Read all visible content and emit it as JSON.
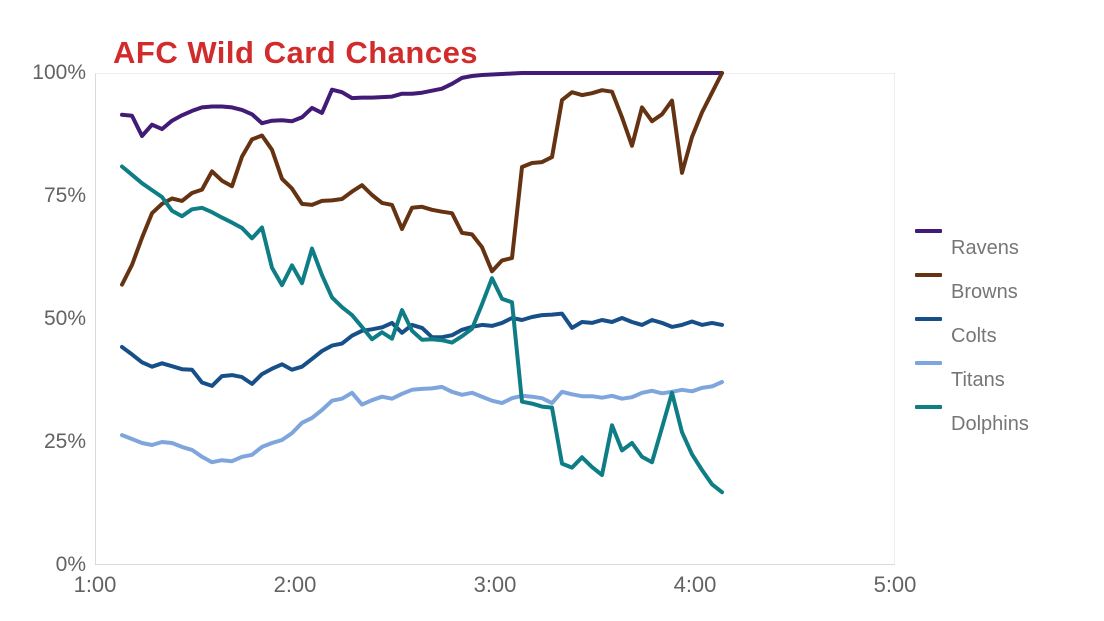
{
  "title": "AFC Wild Card Chances",
  "colors": {
    "title": "#d22b2b",
    "axis_text": "#636363",
    "legend_text": "#767676",
    "plot_border": "#d9d9d9",
    "background": "#ffffff"
  },
  "chart_data": {
    "type": "line",
    "title": "AFC Wild Card Chances",
    "grid": "off",
    "legend_position": "right",
    "x_axis": {
      "label": "",
      "ticks": [
        "1:00",
        "2:00",
        "3:00",
        "4:00",
        "5:00"
      ],
      "range_hours": [
        1,
        5
      ]
    },
    "y_axis": {
      "label": "",
      "ticks_top_to_bottom": [
        "100%",
        "75%",
        "50%",
        "25%",
        "0%"
      ],
      "range_percent": [
        0,
        100
      ]
    },
    "x_start_hours": 1.135,
    "x_step_hours": 0.05,
    "n_points": 61,
    "series": [
      {
        "name": "Ravens",
        "color": "#421b76",
        "values": [
          91.5,
          91.3,
          87.2,
          89.5,
          88.6,
          90.3,
          91.4,
          92.3,
          93.0,
          93.2,
          93.2,
          93.0,
          92.5,
          91.6,
          89.8,
          90.3,
          90.4,
          90.2,
          91.0,
          92.9,
          91.9,
          96.6,
          96.1,
          94.9,
          95.0,
          95.0,
          95.1,
          95.2,
          95.8,
          95.8,
          96.0,
          96.4,
          96.8,
          97.8,
          99.0,
          99.4,
          99.6,
          99.7,
          99.8,
          99.9,
          100,
          100,
          100,
          100,
          100,
          100,
          100,
          100,
          100,
          100,
          100,
          100,
          100,
          100,
          100,
          100,
          100,
          100,
          100,
          100,
          100
        ]
      },
      {
        "name": "Browns",
        "color": "#653312",
        "values": [
          57.0,
          61.0,
          66.5,
          71.5,
          73.4,
          74.5,
          74.0,
          75.6,
          76.3,
          80.0,
          78.1,
          77.0,
          83.0,
          86.5,
          87.3,
          84.4,
          78.5,
          76.5,
          73.4,
          73.2,
          74.0,
          74.1,
          74.4,
          75.9,
          77.2,
          75.2,
          73.6,
          73.2,
          68.3,
          72.6,
          72.8,
          72.2,
          71.8,
          71.5,
          67.5,
          67.2,
          64.6,
          59.7,
          61.9,
          62.4,
          80.9,
          81.7,
          81.9,
          82.9,
          94.5,
          96.1,
          95.5,
          95.9,
          96.5,
          96.2,
          91.0,
          85.2,
          93.0,
          90.2,
          91.6,
          94.4,
          79.7,
          87.0,
          92.0,
          96.0,
          100.0
        ]
      },
      {
        "name": "Colts",
        "color": "#175088",
        "values": [
          44.3,
          42.8,
          41.2,
          40.3,
          41.0,
          40.4,
          39.8,
          39.7,
          37.1,
          36.4,
          38.4,
          38.6,
          38.2,
          36.8,
          38.8,
          39.9,
          40.8,
          39.7,
          40.3,
          41.9,
          43.5,
          44.6,
          45.0,
          46.6,
          47.6,
          47.9,
          48.3,
          49.2,
          47.2,
          48.8,
          48.2,
          46.3,
          46.3,
          46.7,
          47.8,
          48.4,
          48.8,
          48.6,
          49.2,
          50.2,
          49.8,
          50.4,
          50.8,
          50.9,
          51.1,
          48.2,
          49.4,
          49.2,
          49.8,
          49.4,
          50.2,
          49.4,
          48.8,
          49.8,
          49.2,
          48.4,
          48.8,
          49.5,
          48.8,
          49.2,
          48.8
        ]
      },
      {
        "name": "Titans",
        "color": "#7ea6dc",
        "values": [
          26.4,
          25.6,
          24.8,
          24.4,
          25.0,
          24.8,
          24.0,
          23.4,
          22.0,
          20.9,
          21.3,
          21.1,
          22.0,
          22.4,
          24.0,
          24.8,
          25.4,
          26.8,
          28.9,
          29.9,
          31.5,
          33.4,
          33.8,
          35.0,
          32.6,
          33.5,
          34.2,
          33.8,
          34.8,
          35.6,
          35.8,
          35.9,
          36.2,
          35.2,
          34.6,
          35.0,
          34.2,
          33.4,
          32.9,
          33.9,
          34.4,
          34.2,
          33.9,
          32.9,
          35.2,
          34.7,
          34.3,
          34.3,
          34.0,
          34.4,
          33.8,
          34.1,
          35.0,
          35.4,
          34.9,
          35.2,
          35.6,
          35.3,
          36.0,
          36.3,
          37.2
        ]
      },
      {
        "name": "Dolphins",
        "color": "#0e7d85",
        "values": [
          81.0,
          79.3,
          77.6,
          76.2,
          74.8,
          72.0,
          70.9,
          72.3,
          72.6,
          71.7,
          70.6,
          69.6,
          68.5,
          66.4,
          68.6,
          60.4,
          56.9,
          60.9,
          57.3,
          64.3,
          58.9,
          54.4,
          52.4,
          50.8,
          48.4,
          45.9,
          47.3,
          46.0,
          51.8,
          47.6,
          45.8,
          45.9,
          45.7,
          45.2,
          46.5,
          48.0,
          53.0,
          58.3,
          54.1,
          53.4,
          33.2,
          32.8,
          32.2,
          32.0,
          20.6,
          19.8,
          21.9,
          19.9,
          18.3,
          28.4,
          23.3,
          24.8,
          22.0,
          20.9,
          27.9,
          35.0,
          27.0,
          22.5,
          19.3,
          16.4,
          14.8
        ]
      }
    ]
  }
}
